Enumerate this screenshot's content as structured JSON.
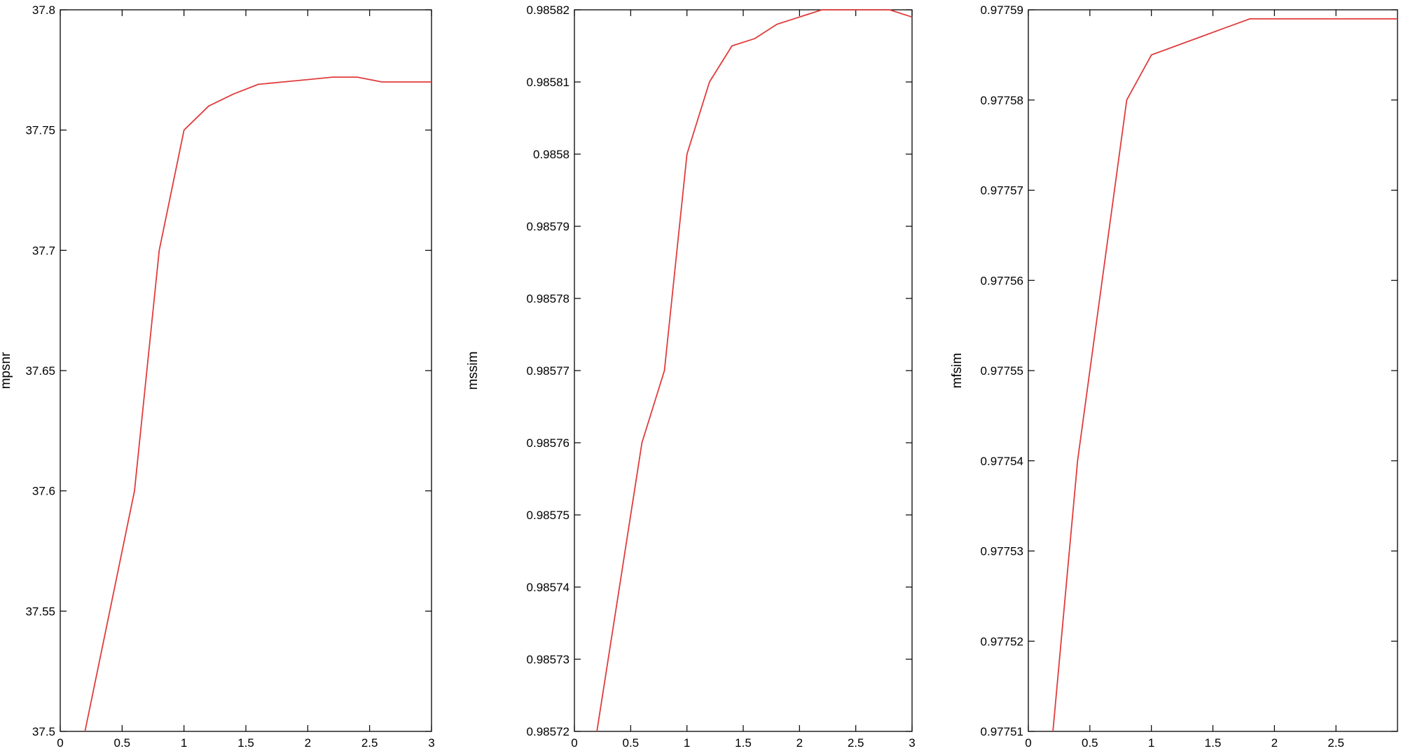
{
  "chart_data": [
    {
      "type": "line",
      "ylabel": "mpsnr",
      "xlim": [
        0,
        3
      ],
      "ylim": [
        37.5,
        37.8
      ],
      "grid": false,
      "line_color": "#e03c3c",
      "xticks": [
        0,
        0.5,
        1,
        1.5,
        2,
        2.5,
        3
      ],
      "xtick_labels": [
        "0",
        "0.5",
        "1",
        "1.5",
        "2",
        "2.5",
        "3"
      ],
      "yticks": [
        37.5,
        37.55,
        37.6,
        37.65,
        37.7,
        37.75,
        37.8
      ],
      "ytick_labels": [
        "37.5",
        "37.55",
        "37.6",
        "37.65",
        "37.7",
        "37.75",
        "37.8"
      ],
      "x": [
        0.2,
        0.4,
        0.6,
        0.8,
        1.0,
        1.2,
        1.4,
        1.6,
        1.8,
        2.0,
        2.2,
        2.4,
        2.6,
        2.8,
        3.0
      ],
      "y": [
        37.5,
        37.55,
        37.6,
        37.7,
        37.75,
        37.76,
        37.765,
        37.769,
        37.77,
        37.771,
        37.772,
        37.772,
        37.77,
        37.77,
        37.77
      ]
    },
    {
      "type": "line",
      "ylabel": "mssim",
      "xlim": [
        0,
        3
      ],
      "ylim": [
        0.98572,
        0.98582
      ],
      "grid": false,
      "line_color": "#e03c3c",
      "xticks": [
        0,
        0.5,
        1,
        1.5,
        2,
        2.5,
        3
      ],
      "xtick_labels": [
        "0",
        "0.5",
        "1",
        "1.5",
        "2",
        "2.5",
        "3"
      ],
      "yticks": [
        0.98572,
        0.98573,
        0.98574,
        0.98575,
        0.98576,
        0.98577,
        0.98578,
        0.98579,
        0.9858,
        0.98581,
        0.98582
      ],
      "ytick_labels": [
        "0.98572",
        "0.98573",
        "0.98574",
        "0.98575",
        "0.98576",
        "0.98577",
        "0.98578",
        "0.98579",
        "0.9858",
        "0.98581",
        "0.98582"
      ],
      "x": [
        0.2,
        0.4,
        0.6,
        0.8,
        1.0,
        1.2,
        1.4,
        1.6,
        1.8,
        2.0,
        2.2,
        2.4,
        2.6,
        2.8,
        3.0
      ],
      "y": [
        0.98572,
        0.98574,
        0.98576,
        0.98577,
        0.9858,
        0.98581,
        0.985815,
        0.985816,
        0.985818,
        0.985819,
        0.98582,
        0.98582,
        0.98582,
        0.98582,
        0.985819
      ]
    },
    {
      "type": "line",
      "ylabel": "mfsim",
      "xlim": [
        0,
        3
      ],
      "ylim": [
        0.97751,
        0.97759
      ],
      "grid": false,
      "line_color": "#e03c3c",
      "xticks": [
        0,
        0.5,
        1,
        1.5,
        2,
        2.5
      ],
      "xtick_labels": [
        "0",
        "0.5",
        "1",
        "1.5",
        "2",
        "2.5"
      ],
      "yticks": [
        0.97751,
        0.97752,
        0.97753,
        0.97754,
        0.97755,
        0.97756,
        0.97757,
        0.97758,
        0.97759
      ],
      "ytick_labels": [
        "0.97751",
        "0.97752",
        "0.97753",
        "0.97754",
        "0.97755",
        "0.97756",
        "0.97757",
        "0.97758",
        "0.97759"
      ],
      "x": [
        0.2,
        0.4,
        0.6,
        0.8,
        1.0,
        1.2,
        1.4,
        1.6,
        1.8,
        2.0,
        2.2,
        2.4,
        2.6,
        2.8,
        3.0
      ],
      "y": [
        0.97751,
        0.97754,
        0.97756,
        0.97758,
        0.977585,
        0.977586,
        0.977587,
        0.977588,
        0.977589,
        0.977589,
        0.977589,
        0.977589,
        0.977589,
        0.977589,
        0.977589
      ]
    }
  ]
}
